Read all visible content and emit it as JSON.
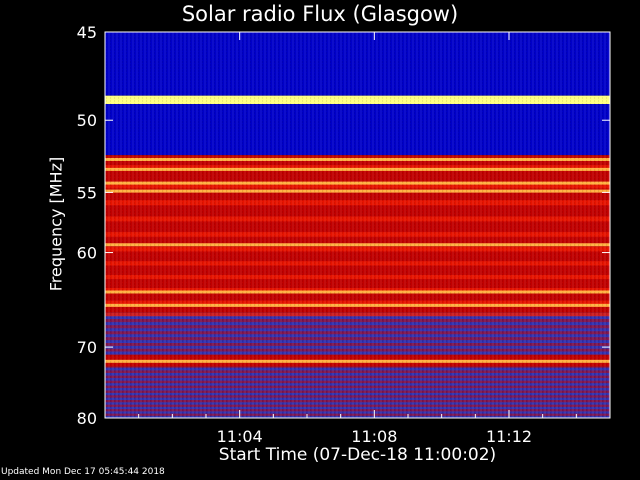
{
  "chart_data": {
    "type": "heatmap",
    "title": "Solar radio Flux (Glasgow)",
    "xlabel": "Start Time (07-Dec-18 11:00:02)",
    "ylabel": "Frequency [MHz]",
    "y_range": [
      45,
      80
    ],
    "y_ticks": [
      45,
      50,
      55,
      60,
      70,
      80
    ],
    "y_tick_labels": [
      "45",
      "50",
      "55",
      "60",
      "70",
      "80"
    ],
    "y_axis_scale": "reciprocal",
    "x_range_minutes": [
      0,
      15
    ],
    "x_ticks_minutes": [
      4,
      8,
      12
    ],
    "x_tick_labels": [
      "11:04",
      "11:08",
      "11:12"
    ],
    "colormap": [
      "#0000c8",
      "#3030b0",
      "#c00000",
      "#ff2000",
      "#ffff80"
    ],
    "frequency_bands": [
      {
        "from": 45,
        "to": 48.5,
        "level": "low"
      },
      {
        "from": 48.5,
        "to": 49.0,
        "level": "peak"
      },
      {
        "from": 49.0,
        "to": 52.3,
        "level": "low"
      },
      {
        "from": 52.3,
        "to": 60.5,
        "level": "high"
      },
      {
        "from": 60.5,
        "to": 66.0,
        "level": "high"
      },
      {
        "from": 66.0,
        "to": 71.0,
        "level": "mid"
      },
      {
        "from": 71.0,
        "to": 72.5,
        "level": "high"
      },
      {
        "from": 72.5,
        "to": 80,
        "level": "mid"
      }
    ],
    "bright_lines_mhz": [
      48.7,
      52.6,
      53.3,
      54.3,
      54.9,
      59.3,
      63.8,
      65.2,
      71.8
    ],
    "grid": false
  },
  "footer": {
    "updated": "Updated Mon Dec 17 05:45:44 2018"
  }
}
